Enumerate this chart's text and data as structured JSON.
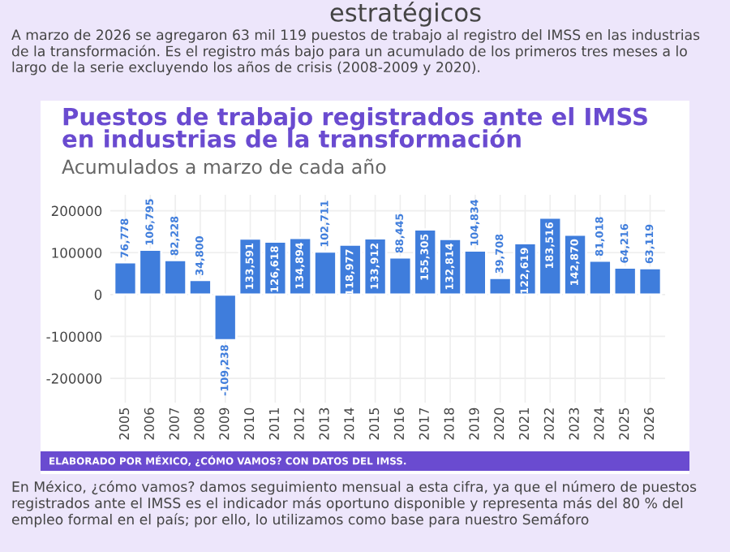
{
  "chart_data": {
    "type": "bar",
    "title": "Puestos de trabajo registrados ante el IMSS\nen industrias de la transformación",
    "subtitle": "Acumulados a marzo de cada año",
    "categories": [
      "2005",
      "2006",
      "2007",
      "2008",
      "2009",
      "2010",
      "2011",
      "2012",
      "2013",
      "2014",
      "2015",
      "2016",
      "2017",
      "2018",
      "2019",
      "2020",
      "2021",
      "2022",
      "2023",
      "2024",
      "2025",
      "2026"
    ],
    "values": [
      76778,
      106795,
      82228,
      34800,
      -109238,
      133591,
      126618,
      134894,
      102711,
      118977,
      133912,
      88445,
      155305,
      132814,
      104834,
      39708,
      122619,
      183516,
      142870,
      81018,
      64216,
      63119
    ],
    "value_labels": [
      "76,778",
      "106,795",
      "82,228",
      "34,800",
      "-109,238",
      "133,591",
      "126,618",
      "134,894",
      "102,711",
      "118,977",
      "133,912",
      "88,445",
      "155,305",
      "132,814",
      "104,834",
      "39,708",
      "122,619",
      "183,516",
      "142,870",
      "81,018",
      "64,216",
      "63,119"
    ],
    "color": "#3f7ddc",
    "ylim": [
      -258000,
      238000
    ],
    "yticks": [
      -200000,
      -100000,
      0,
      100000,
      200000
    ],
    "grid": true,
    "annotations": [
      "estratégicos",
      "A marzo de 2026 se agregaron 63 mil 119 puestos de trabajo al registro del IMSS en las industrias de la transformación. Es el registro más bajo para un acumulado de los primeros tres meses a lo largo de la serie excluyendo los años de crisis (2008-2009 y 2020).",
      "ELABORADO POR MÉXICO, ¿CÓMO VAMOS? CON DATOS DEL IMSS.",
      "En México, ¿cómo vamos? damos seguimiento mensual a esta cifra, ya que el número de puestos registrados ante el IMSS es el indicador más oportuno disponible y representa más del 80 % del empleo formal en el país; por ello, lo utilizamos como base para nuestro Semáforo"
    ]
  }
}
